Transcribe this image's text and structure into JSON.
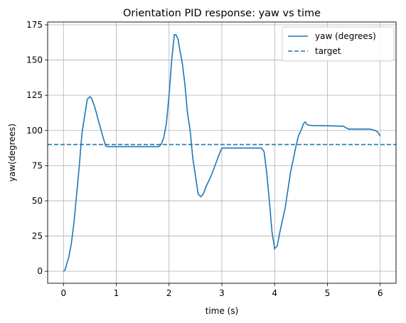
{
  "chart_data": {
    "type": "line",
    "title": "Orientation PID response: yaw vs time",
    "xlabel": "time (s)",
    "ylabel": "yaw(degrees)",
    "xlim": [
      -0.3,
      6.3
    ],
    "ylim": [
      -8.5,
      177
    ],
    "xticks": [
      0,
      1,
      2,
      3,
      4,
      5,
      6
    ],
    "yticks": [
      0,
      25,
      50,
      75,
      100,
      125,
      150,
      175
    ],
    "grid": true,
    "legend_position": "top-right",
    "colors": {
      "series": "#1f77b4",
      "grid": "#b0b0b0",
      "axes": "#000000"
    },
    "series": [
      {
        "name": "yaw (degrees)",
        "style": "solid",
        "x": [
          0,
          0.03,
          0.06,
          0.1,
          0.15,
          0.2,
          0.25,
          0.3,
          0.35,
          0.4,
          0.45,
          0.5,
          0.53,
          0.55,
          0.58,
          0.62,
          0.66,
          0.7,
          0.75,
          0.8,
          0.83,
          0.85,
          0.9,
          1.0,
          1.2,
          1.5,
          1.8,
          1.85,
          1.9,
          1.95,
          2.0,
          2.05,
          2.1,
          2.13,
          2.17,
          2.2,
          2.25,
          2.3,
          2.35,
          2.4,
          2.45,
          2.5,
          2.55,
          2.6,
          2.63,
          2.66,
          2.7,
          2.8,
          2.9,
          2.95,
          3.0,
          3.1,
          3.3,
          3.6,
          3.75,
          3.8,
          3.85,
          3.9,
          3.95,
          4.0,
          4.05,
          4.1,
          4.2,
          4.3,
          4.4,
          4.45,
          4.5,
          4.55,
          4.58,
          4.62,
          4.7,
          5.0,
          5.3,
          5.35,
          5.4,
          5.8,
          5.9,
          5.95,
          6.0
        ],
        "y": [
          0,
          1,
          5,
          10,
          20,
          35,
          55,
          75,
          98,
          110,
          122,
          124,
          123,
          121,
          118,
          113,
          107,
          102,
          95,
          89,
          88.5,
          88.5,
          88.5,
          88.5,
          88.5,
          88.5,
          88.5,
          90,
          95,
          105,
          125,
          150,
          168,
          168,
          165,
          158,
          148,
          133,
          112,
          100,
          80,
          68,
          55,
          53,
          54,
          56,
          60,
          68,
          78,
          83,
          87.5,
          87.5,
          87.5,
          87.5,
          87.5,
          85,
          70,
          50,
          28,
          16,
          18,
          28,
          45,
          70,
          88,
          96,
          100,
          105,
          106,
          104,
          103.5,
          103.3,
          103,
          102,
          101,
          101,
          100,
          99,
          96
        ]
      },
      {
        "name": "target",
        "style": "dashed",
        "x": [
          -0.3,
          6.3
        ],
        "y": [
          90,
          90
        ]
      }
    ]
  }
}
